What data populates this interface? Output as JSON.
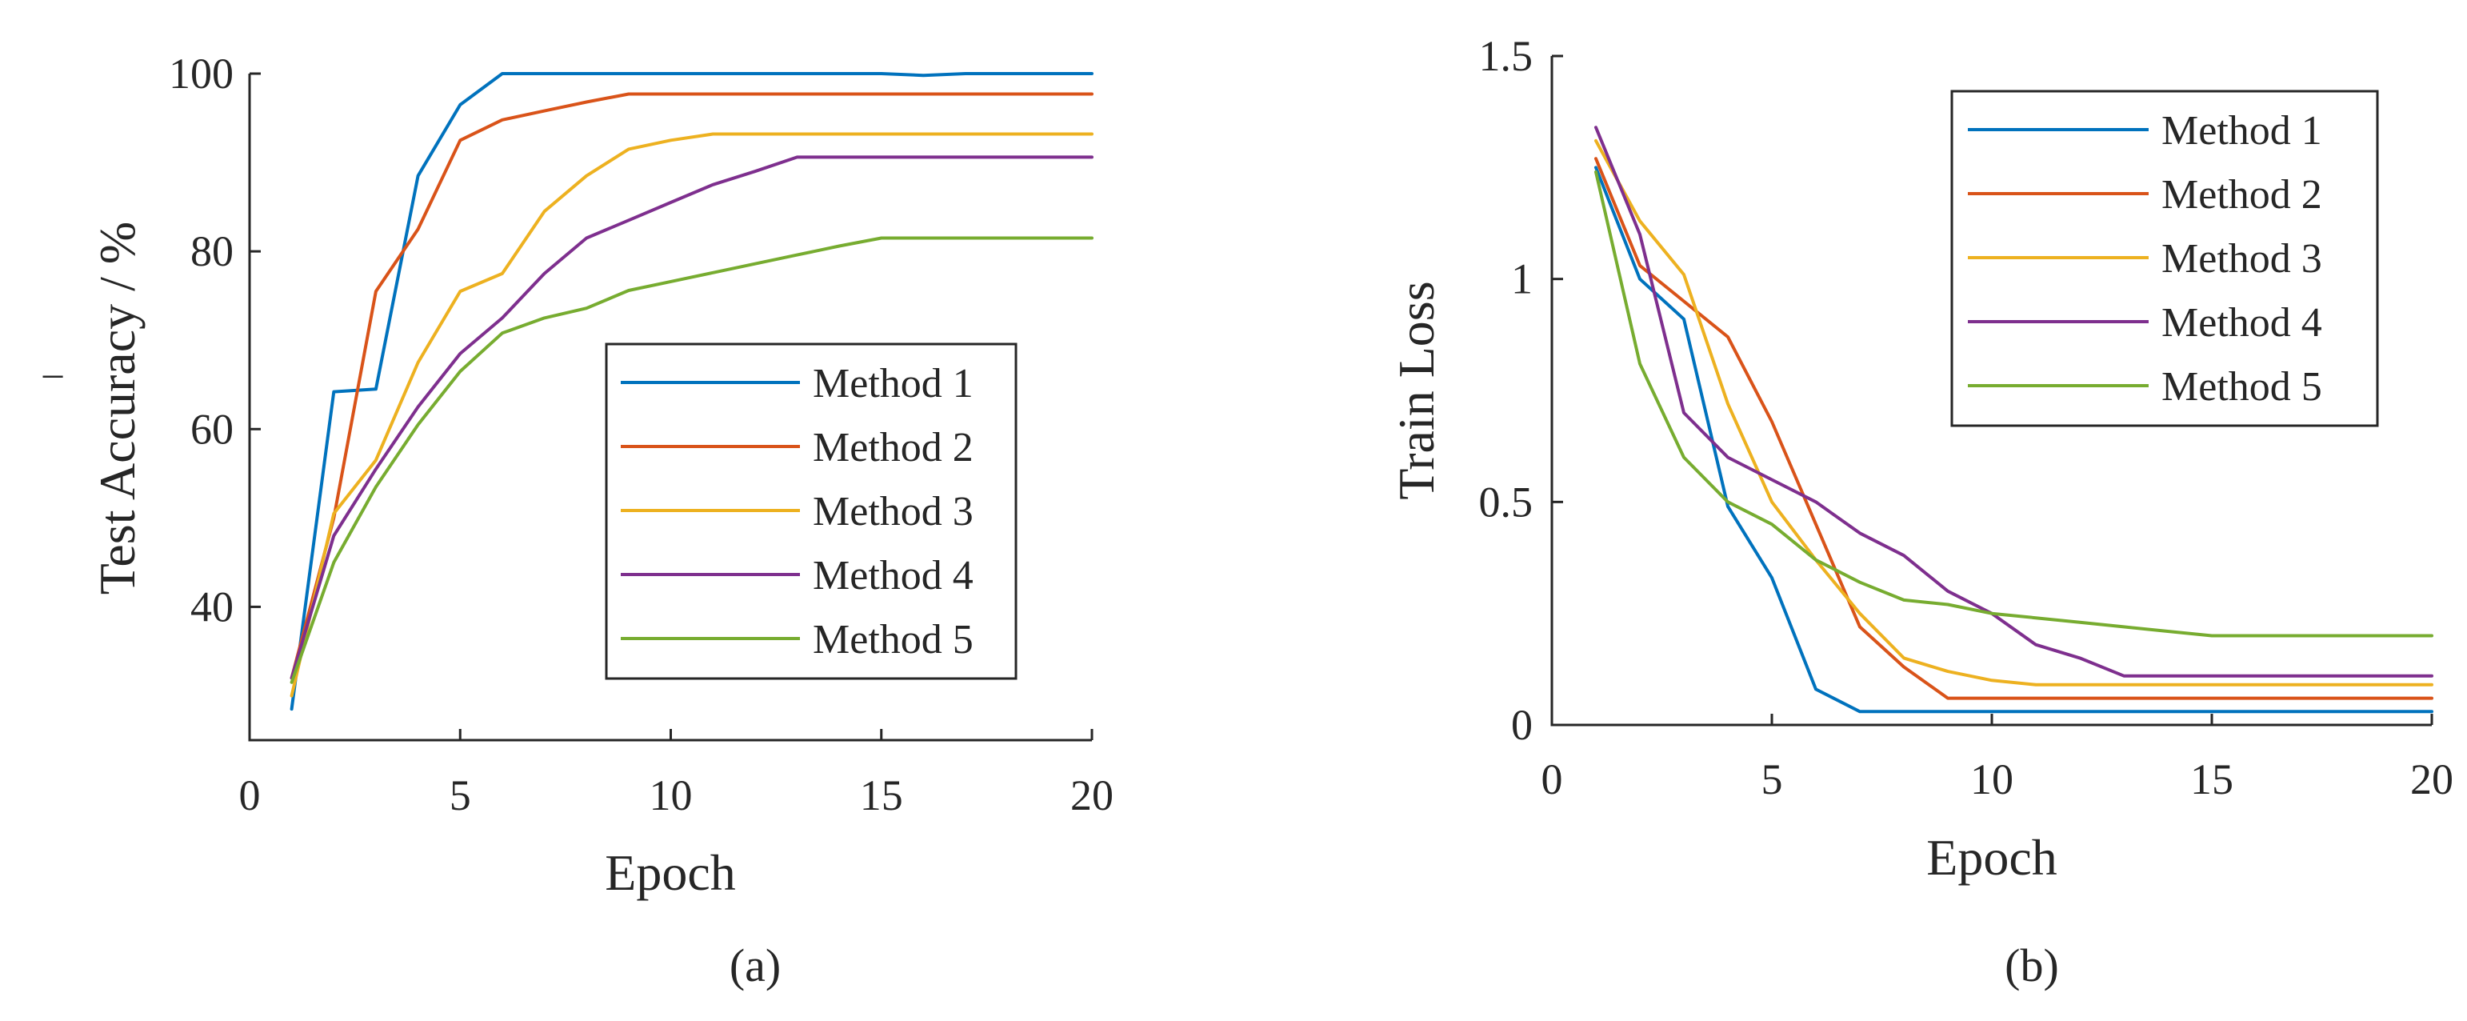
{
  "chart_data": [
    {
      "type": "line",
      "panel": "(a)",
      "caption": "(a)",
      "title": "",
      "xlabel": "Epoch",
      "ylabel": "Test Accuracy / %",
      "stray_mark": "‾",
      "xlim": [
        0,
        20
      ],
      "ylim": [
        25,
        100
      ],
      "xticks": [
        0,
        5,
        10,
        15,
        20
      ],
      "yticks": [
        40,
        60,
        80,
        100
      ],
      "legend_position": "lower-right",
      "x": [
        1,
        2,
        3,
        4,
        5,
        6,
        7,
        8,
        9,
        10,
        11,
        12,
        13,
        14,
        15,
        16,
        17,
        18,
        19,
        20
      ],
      "series": [
        {
          "name": "Method 1",
          "color": "#0072BD",
          "values": [
            28.5,
            64.2,
            64.5,
            88.5,
            96.5,
            100,
            100,
            100,
            100,
            100,
            100,
            100,
            100,
            100,
            100,
            99.8,
            100,
            100,
            100,
            100
          ]
        },
        {
          "name": "Method 2",
          "color": "#D95319",
          "values": [
            32,
            50,
            75.5,
            82.5,
            92.5,
            94.8,
            95.8,
            96.8,
            97.7,
            97.7,
            97.7,
            97.7,
            97.7,
            97.7,
            97.7,
            97.7,
            97.7,
            97.7,
            97.7,
            97.7
          ]
        },
        {
          "name": "Method 3",
          "color": "#EDB120",
          "values": [
            30,
            50.5,
            56.5,
            67.5,
            75.5,
            77.5,
            84.5,
            88.5,
            91.5,
            92.5,
            93.2,
            93.2,
            93.2,
            93.2,
            93.2,
            93.2,
            93.2,
            93.2,
            93.2,
            93.2
          ]
        },
        {
          "name": "Method 4",
          "color": "#7E2F8E",
          "values": [
            32,
            48,
            55.5,
            62.5,
            68.5,
            72.5,
            77.5,
            81.5,
            83.5,
            85.5,
            87.5,
            89,
            90.6,
            90.6,
            90.6,
            90.6,
            90.6,
            90.6,
            90.6,
            90.6
          ]
        },
        {
          "name": "Method 5",
          "color": "#77AC30",
          "values": [
            31.5,
            45,
            53.5,
            60.5,
            66.5,
            70.8,
            72.5,
            73.6,
            75.6,
            76.6,
            77.6,
            78.6,
            79.6,
            80.6,
            81.5,
            81.5,
            81.5,
            81.5,
            81.5,
            81.5
          ]
        }
      ]
    },
    {
      "type": "line",
      "panel": "(b)",
      "caption": "(b)",
      "title": "",
      "xlabel": "Epoch",
      "ylabel": "Train Loss",
      "xlim": [
        0,
        20
      ],
      "ylim": [
        0,
        1.5
      ],
      "xticks": [
        0,
        5,
        10,
        15,
        20
      ],
      "yticks": [
        0,
        0.5,
        1,
        1.5
      ],
      "legend_position": "top-right",
      "x": [
        1,
        2,
        3,
        4,
        5,
        6,
        7,
        8,
        9,
        10,
        11,
        12,
        13,
        14,
        15,
        16,
        17,
        18,
        19,
        20
      ],
      "series": [
        {
          "name": "Method 1",
          "color": "#0072BD",
          "values": [
            1.25,
            1.0,
            0.91,
            0.49,
            0.33,
            0.08,
            0.03,
            0.03,
            0.03,
            0.03,
            0.03,
            0.03,
            0.03,
            0.03,
            0.03,
            0.03,
            0.03,
            0.03,
            0.03,
            0.03
          ]
        },
        {
          "name": "Method 2",
          "color": "#D95319",
          "values": [
            1.27,
            1.03,
            0.95,
            0.87,
            0.68,
            0.45,
            0.22,
            0.13,
            0.06,
            0.06,
            0.06,
            0.06,
            0.06,
            0.06,
            0.06,
            0.06,
            0.06,
            0.06,
            0.06,
            0.06
          ]
        },
        {
          "name": "Method 3",
          "color": "#EDB120",
          "values": [
            1.31,
            1.13,
            1.01,
            0.72,
            0.5,
            0.37,
            0.25,
            0.15,
            0.12,
            0.1,
            0.09,
            0.09,
            0.09,
            0.09,
            0.09,
            0.09,
            0.09,
            0.09,
            0.09,
            0.09
          ]
        },
        {
          "name": "Method 4",
          "color": "#7E2F8E",
          "values": [
            1.34,
            1.1,
            0.7,
            0.6,
            0.55,
            0.5,
            0.43,
            0.38,
            0.3,
            0.25,
            0.18,
            0.15,
            0.11,
            0.11,
            0.11,
            0.11,
            0.11,
            0.11,
            0.11,
            0.11
          ]
        },
        {
          "name": "Method 5",
          "color": "#77AC30",
          "values": [
            1.24,
            0.81,
            0.6,
            0.5,
            0.45,
            0.37,
            0.32,
            0.28,
            0.27,
            0.25,
            0.24,
            0.23,
            0.22,
            0.21,
            0.2,
            0.2,
            0.2,
            0.2,
            0.2,
            0.2
          ]
        }
      ]
    }
  ]
}
